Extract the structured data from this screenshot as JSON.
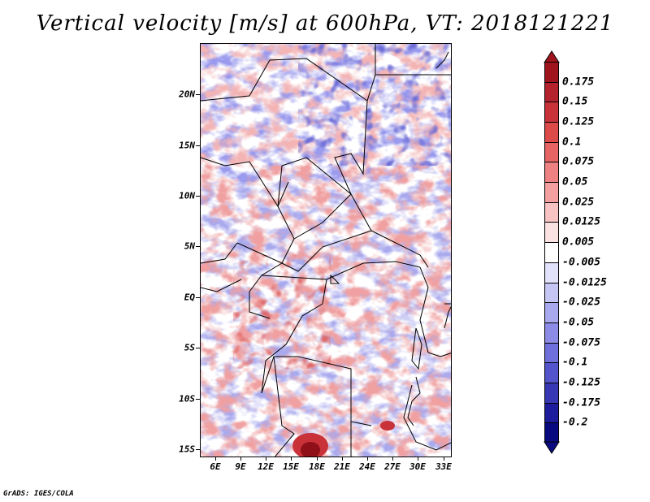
{
  "title": "Vertical velocity [m/s] at 600hPa, VT: 2018121221",
  "footer": "GrADS: IGES/COLA",
  "map": {
    "lat_labels": [
      "20N",
      "15N",
      "10N",
      "5N",
      "EQ",
      "5S",
      "10S",
      "15S"
    ],
    "lon_labels": [
      "6E",
      "9E",
      "12E",
      "15E",
      "18E",
      "21E",
      "24E",
      "27E",
      "30E",
      "33E"
    ],
    "lat_values": [
      20,
      15,
      10,
      5,
      0,
      -5,
      -10,
      -15
    ],
    "lon_values": [
      6,
      9,
      12,
      15,
      18,
      21,
      24,
      27,
      30,
      33
    ],
    "lon_range": [
      4,
      33.5
    ],
    "lat_range": [
      -16,
      24.5
    ]
  },
  "colorbar": {
    "labels": [
      "0.175",
      "0.15",
      "0.125",
      "0.1",
      "0.075",
      "0.05",
      "0.025",
      "0.0125",
      "0.005",
      "-0.005",
      "-0.0125",
      "-0.025",
      "-0.05",
      "-0.075",
      "-0.1",
      "-0.125",
      "-0.175",
      "-0.2"
    ],
    "colors": [
      "#a0141e",
      "#b4232d",
      "#c83238",
      "#dc4a4a",
      "#e66464",
      "#ee8282",
      "#f4a0a0",
      "#f8c3c3",
      "#fbe2e2",
      "#ffffff",
      "#e2e2fb",
      "#c6c6f4",
      "#a9a9ee",
      "#8c8ce6",
      "#7070dc",
      "#5454cc",
      "#3838b4",
      "#1c1c9c",
      "#0a0a80"
    ],
    "top_triangle_color": "#a0141e",
    "bottom_triangle_color": "#0a0a80"
  }
}
